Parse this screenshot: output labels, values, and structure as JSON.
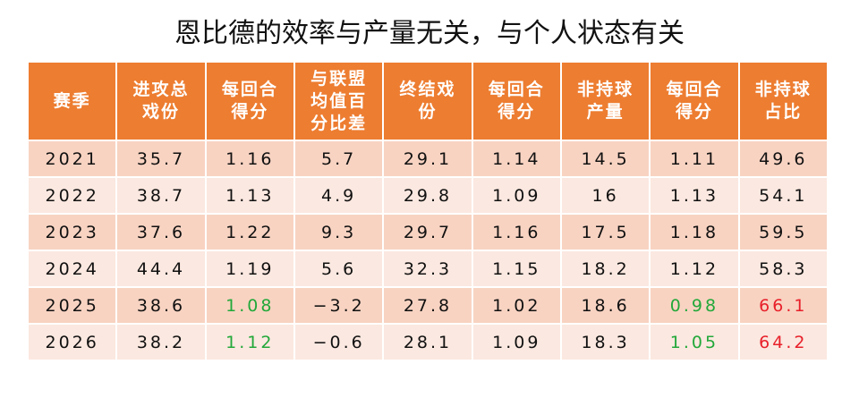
{
  "title": "恩比德的效率与产量无关，与个人状态有关",
  "table": {
    "headers": [
      "赛季",
      "进攻总\n戏份",
      "每回合\n得分",
      "与联盟\n均值百\n分比差",
      "终结戏\n份",
      "每回合\n得分",
      "非持球\n产量",
      "每回合\n得分",
      "非持球\n占比"
    ],
    "rows": [
      [
        "2021",
        "35.7",
        "1.16",
        "5.7",
        "29.1",
        "1.14",
        "14.5",
        "1.11",
        "49.6"
      ],
      [
        "2022",
        "38.7",
        "1.13",
        "4.9",
        "29.8",
        "1.09",
        "16",
        "1.13",
        "54.1"
      ],
      [
        "2023",
        "37.6",
        "1.22",
        "9.3",
        "29.7",
        "1.16",
        "17.5",
        "1.18",
        "59.5"
      ],
      [
        "2024",
        "44.4",
        "1.19",
        "5.6",
        "32.3",
        "1.15",
        "18.2",
        "1.12",
        "58.3"
      ],
      [
        "2025",
        "38.6",
        {
          "text": "1.08",
          "color": "#22a83a"
        },
        "−3.2",
        "27.8",
        "1.02",
        "18.6",
        {
          "text": "0.98",
          "color": "#22a83a"
        },
        {
          "text": "66.1",
          "color": "#e8202a"
        }
      ],
      [
        "2026",
        "38.2",
        {
          "text": "1.12",
          "color": "#22a83a"
        },
        "−0.6",
        "28.1",
        "1.09",
        "18.3",
        {
          "text": "1.05",
          "color": "#22a83a"
        },
        {
          "text": "64.2",
          "color": "#e8202a"
        }
      ]
    ]
  }
}
